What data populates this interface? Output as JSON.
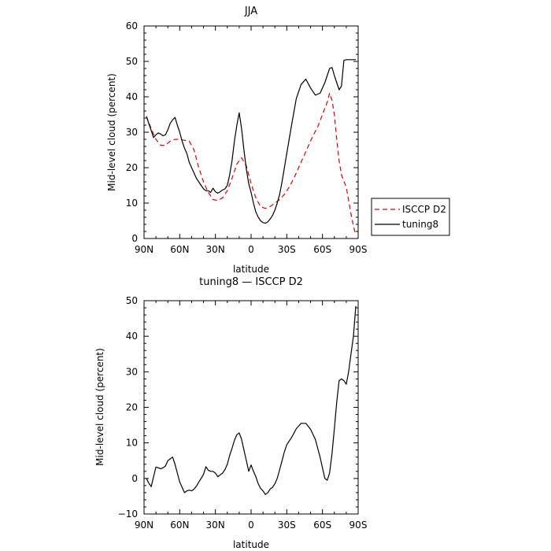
{
  "chart_data": [
    {
      "type": "line",
      "title": "JJA",
      "xlabel": "latitude",
      "ylabel": "Mid-level cloud (percent)",
      "xlim": [
        90,
        -90
      ],
      "ylim": [
        0,
        60
      ],
      "xticks": [
        90,
        60,
        30,
        0,
        -30,
        -60,
        -90
      ],
      "xtick_labels": [
        "90N",
        "60N",
        "30N",
        "0",
        "30S",
        "60S",
        "90S"
      ],
      "yticks": [
        0,
        10,
        20,
        30,
        40,
        50,
        60
      ],
      "ytick_labels": [
        "0",
        "10",
        "20",
        "30",
        "40",
        "50",
        "60"
      ],
      "grid": false,
      "legend_position": "right",
      "series": [
        {
          "name": "ISCCP D2",
          "color": "#e00000",
          "dash": "dashed",
          "x": [
            88,
            84,
            80,
            76,
            72,
            68,
            64,
            60,
            56,
            52,
            48,
            44,
            40,
            36,
            32,
            28,
            24,
            20,
            16,
            12,
            8,
            4,
            0,
            -4,
            -8,
            -12,
            -16,
            -20,
            -24,
            -28,
            -32,
            -36,
            -40,
            -44,
            -48,
            -52,
            -56,
            -60,
            -64,
            -66,
            -68,
            -70,
            -72,
            -74,
            -76,
            -80,
            -84,
            -86,
            -88
          ],
          "y": [
            34.5,
            31,
            28,
            26.3,
            26.3,
            27.5,
            28,
            28,
            27.7,
            27.5,
            25,
            20,
            16,
            13,
            11,
            10.7,
            11.5,
            13.5,
            17,
            21,
            22.8,
            20.5,
            15.5,
            11.5,
            9,
            8.5,
            9,
            10,
            11,
            12.5,
            14.5,
            17,
            20,
            23,
            26,
            29,
            31.5,
            35,
            38.5,
            41,
            39,
            35,
            28,
            22,
            18,
            14.5,
            7,
            3.5,
            1
          ]
        },
        {
          "name": "tuning8",
          "color": "#000000",
          "dash": "solid",
          "x": [
            88,
            86,
            84,
            82,
            80,
            78,
            76,
            74,
            72,
            70,
            68,
            66,
            64,
            62,
            60,
            58,
            56,
            54,
            52,
            50,
            48,
            46,
            44,
            42,
            40,
            38,
            36,
            34,
            32,
            30,
            28,
            26,
            24,
            22,
            20,
            18,
            16,
            14,
            12,
            10,
            8,
            6,
            4,
            2,
            0,
            -2,
            -4,
            -6,
            -8,
            -10,
            -12,
            -14,
            -16,
            -18,
            -20,
            -22,
            -24,
            -26,
            -28,
            -30,
            -34,
            -38,
            -42,
            -46,
            -50,
            -54,
            -58,
            -62,
            -64,
            -66,
            -68,
            -70,
            -72,
            -74,
            -76,
            -78,
            -80,
            -82,
            -84,
            -86,
            -88
          ],
          "y": [
            34.5,
            32.5,
            30.5,
            28.5,
            29.3,
            29.8,
            29.5,
            29,
            29.3,
            30.7,
            32.5,
            33.5,
            34.2,
            32,
            30,
            27.5,
            25.5,
            24,
            21.5,
            20,
            18.5,
            17,
            16,
            15,
            14,
            13.5,
            13.5,
            13,
            14.2,
            13.2,
            12.8,
            13.2,
            13.7,
            14,
            15,
            18,
            22,
            27.5,
            32,
            35.5,
            31,
            25,
            19.5,
            15.5,
            13,
            10,
            7.5,
            6,
            5,
            4.5,
            4.3,
            4.7,
            5.5,
            6.5,
            8,
            10,
            12.5,
            16,
            20,
            24,
            32,
            39.5,
            43.5,
            45,
            42.5,
            40.5,
            41,
            44,
            46,
            48,
            48.3,
            46,
            44,
            42,
            43,
            50.3,
            50.5,
            50.5,
            50.5,
            50.5,
            50.5
          ]
        }
      ]
    },
    {
      "type": "line",
      "title": "tuning8 — ISCCP D2",
      "xlabel": "latitude",
      "ylabel": "Mid-level cloud (percent)",
      "xlim": [
        90,
        -90
      ],
      "ylim": [
        -10,
        50
      ],
      "xticks": [
        90,
        60,
        30,
        0,
        -30,
        -60,
        -90
      ],
      "xtick_labels": [
        "90N",
        "60N",
        "30N",
        "0",
        "30S",
        "60S",
        "90S"
      ],
      "yticks": [
        -10,
        0,
        10,
        20,
        30,
        40,
        50
      ],
      "ytick_labels": [
        "−10",
        "0",
        "10",
        "20",
        "30",
        "40",
        "50"
      ],
      "grid": false,
      "series": [
        {
          "color": "#000000",
          "dash": "solid",
          "x": [
            88,
            86,
            84,
            82,
            80,
            78,
            76,
            74,
            72,
            70,
            68,
            66,
            64,
            62,
            60,
            58,
            56,
            54,
            52,
            50,
            48,
            46,
            44,
            42,
            40,
            38,
            36,
            34,
            32,
            30,
            28,
            26,
            24,
            22,
            20,
            18,
            16,
            14,
            12,
            10,
            8,
            6,
            4,
            2,
            0,
            -2,
            -4,
            -6,
            -8,
            -10,
            -12,
            -14,
            -16,
            -18,
            -20,
            -22,
            -24,
            -26,
            -28,
            -30,
            -34,
            -38,
            -42,
            -46,
            -50,
            -54,
            -58,
            -62,
            -64,
            -66,
            -68,
            -70,
            -72,
            -74,
            -76,
            -78,
            -80,
            -82,
            -84,
            -86,
            -88
          ],
          "y": [
            0,
            -1.3,
            -2.3,
            0.5,
            3.2,
            3,
            2.7,
            3,
            3.5,
            5,
            5.5,
            6,
            4,
            1.5,
            -1,
            -2.5,
            -4,
            -3.5,
            -3.3,
            -3.5,
            -3,
            -2.2,
            -1,
            0,
            1.2,
            3.3,
            2.3,
            2,
            2,
            1.5,
            0.5,
            1,
            1.5,
            2.5,
            4,
            6.5,
            8.5,
            10.7,
            12.3,
            12.8,
            11,
            8,
            5,
            2,
            3.8,
            2,
            0.5,
            -1.5,
            -2.8,
            -3.5,
            -4.5,
            -4,
            -3,
            -2.5,
            -1.5,
            0,
            2.5,
            5,
            7.5,
            9.5,
            11.5,
            14,
            15.5,
            15.5,
            13.8,
            11,
            6,
            0,
            -0.5,
            1.5,
            7,
            14,
            21.5,
            27.5,
            28,
            27.5,
            26.5,
            30,
            35,
            40,
            48.5
          ]
        }
      ]
    }
  ]
}
